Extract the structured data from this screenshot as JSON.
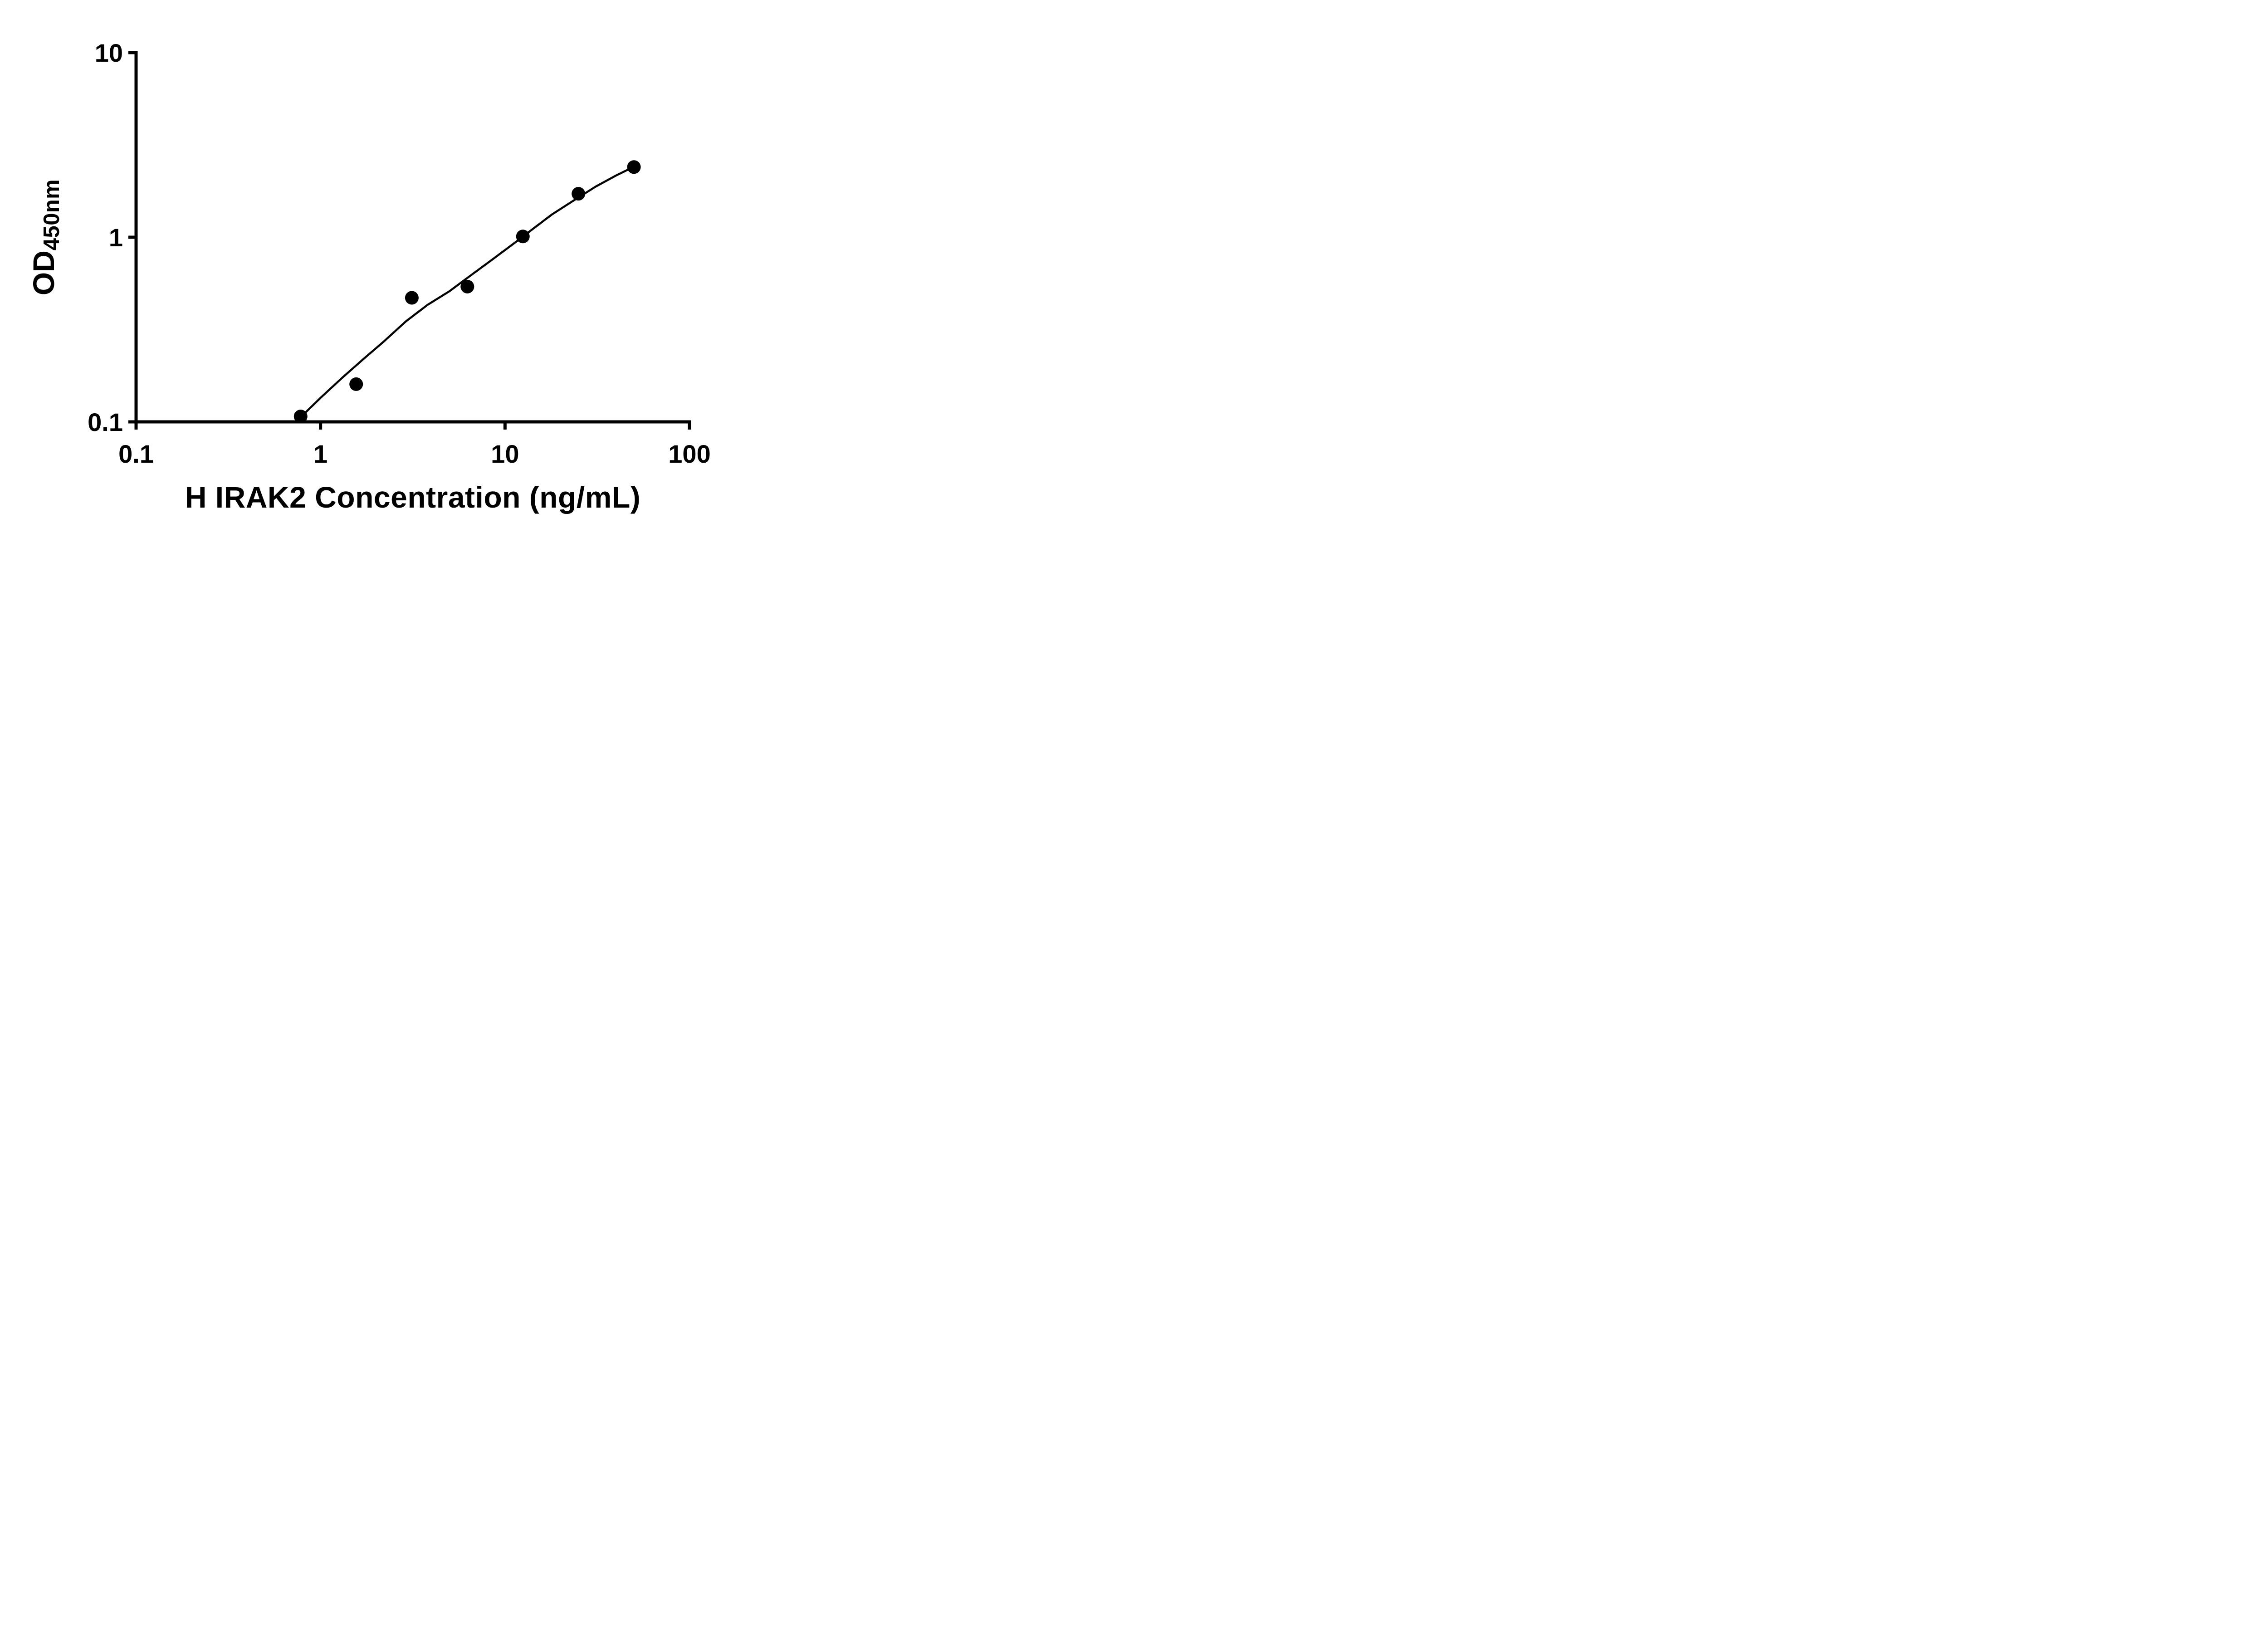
{
  "figure": {
    "background": "#ffffff"
  },
  "chart_data": {
    "type": "scatter",
    "title": "",
    "xlabel": "H IRAK2 Concentration (ng/mL)",
    "ylabel_text": "OD",
    "ylabel_subscript": "450nm",
    "x_scale": "log",
    "y_scale": "log",
    "xlim": [
      0.1,
      100
    ],
    "ylim": [
      0.1,
      10
    ],
    "x_ticks": {
      "values": [
        0.1,
        1,
        10,
        100
      ],
      "labels": [
        "0.1",
        "1",
        "10",
        "100"
      ]
    },
    "y_ticks": {
      "values": [
        0.1,
        1,
        10
      ],
      "labels": [
        "0.1",
        "1",
        "10"
      ]
    },
    "grid": false,
    "legend": false,
    "axis_color": "#000000",
    "marker_color": "#000000",
    "line_color": "#000000",
    "series": [
      {
        "marker": "circle",
        "x": [
          0.78,
          1.56,
          3.125,
          6.25,
          12.5,
          25,
          50
        ],
        "y": [
          0.107,
          0.16,
          0.47,
          0.54,
          1.01,
          1.72,
          2.4
        ]
      }
    ],
    "fit_curve": {
      "x": [
        0.78,
        1.0,
        1.3,
        1.7,
        2.2,
        2.9,
        3.8,
        5.0,
        6.5,
        8.5,
        11,
        14,
        18,
        24,
        31,
        40,
        50
      ],
      "y": [
        0.106,
        0.135,
        0.172,
        0.218,
        0.272,
        0.35,
        0.43,
        0.51,
        0.62,
        0.755,
        0.915,
        1.1,
        1.33,
        1.6,
        1.88,
        2.16,
        2.41
      ]
    }
  }
}
